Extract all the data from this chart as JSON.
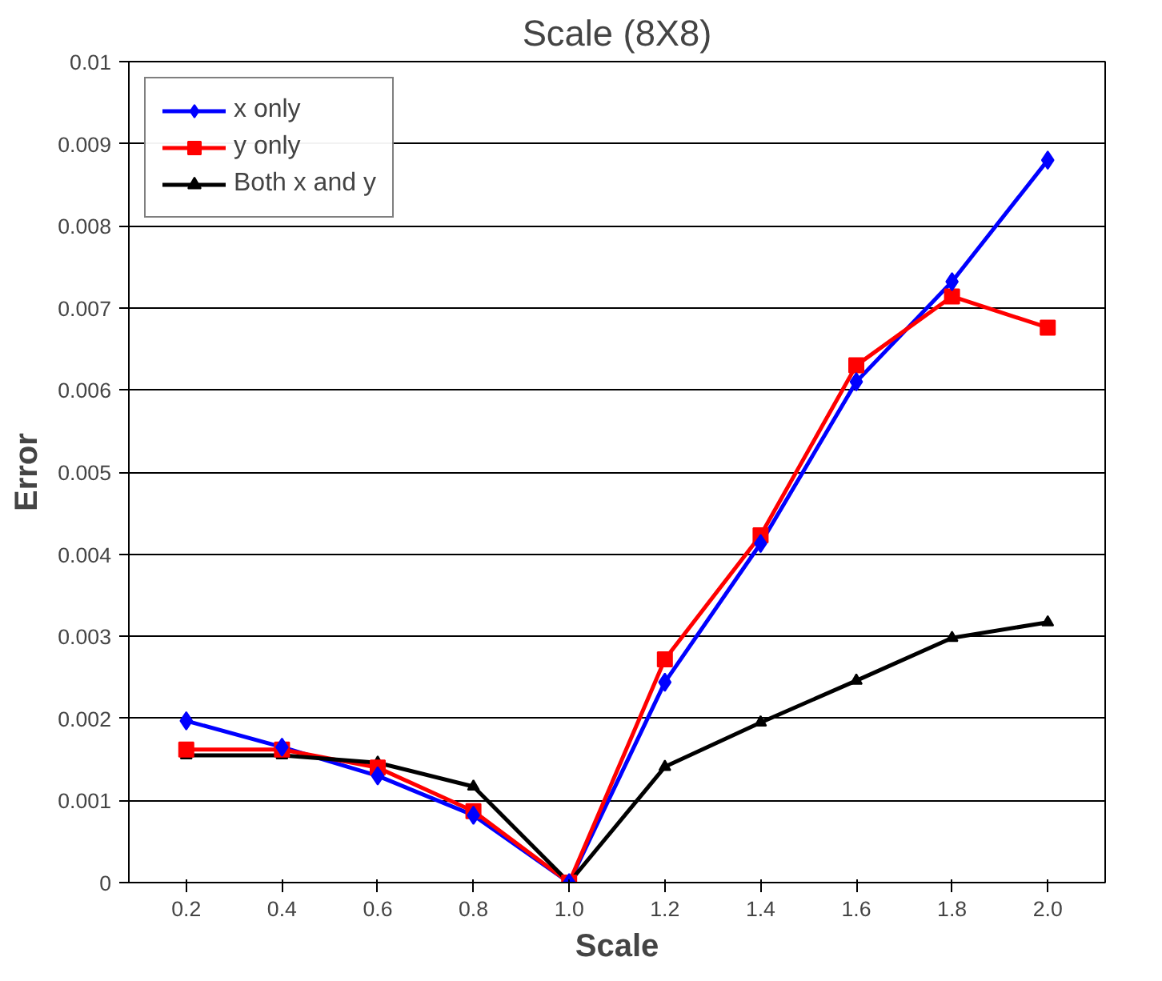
{
  "chart_data": {
    "type": "line",
    "title": "Scale (8X8)",
    "xlabel": "Scale",
    "ylabel": "Error",
    "categories": [
      "0.2",
      "0.4",
      "0.6",
      "0.8",
      "1.0",
      "1.2",
      "1.4",
      "1.6",
      "1.8",
      "2.0"
    ],
    "series": [
      {
        "name": "x only",
        "color": "#0000ff",
        "marker": "diamond",
        "values": [
          0.00197,
          0.00165,
          0.0013,
          0.00082,
          0,
          0.00244,
          0.00413,
          0.0061,
          0.00732,
          0.0088
        ]
      },
      {
        "name": "y only",
        "color": "#ff0000",
        "marker": "square",
        "values": [
          0.00162,
          0.00162,
          0.0014,
          0.00087,
          0,
          0.00272,
          0.00423,
          0.0063,
          0.00714,
          0.00676
        ]
      },
      {
        "name": "Both x and y",
        "color": "#000000",
        "marker": "triangle",
        "values": [
          0.00155,
          0.00155,
          0.00146,
          0.00117,
          0,
          0.00141,
          0.00195,
          0.00246,
          0.00298,
          0.00317
        ]
      }
    ],
    "ylim": [
      0,
      0.01
    ],
    "yticks": [
      0,
      0.001,
      0.002,
      0.003,
      0.004,
      0.005,
      0.006,
      0.007,
      0.008,
      0.009,
      0.01
    ],
    "grid": "y",
    "legend": "top left",
    "line_style": "solid"
  }
}
